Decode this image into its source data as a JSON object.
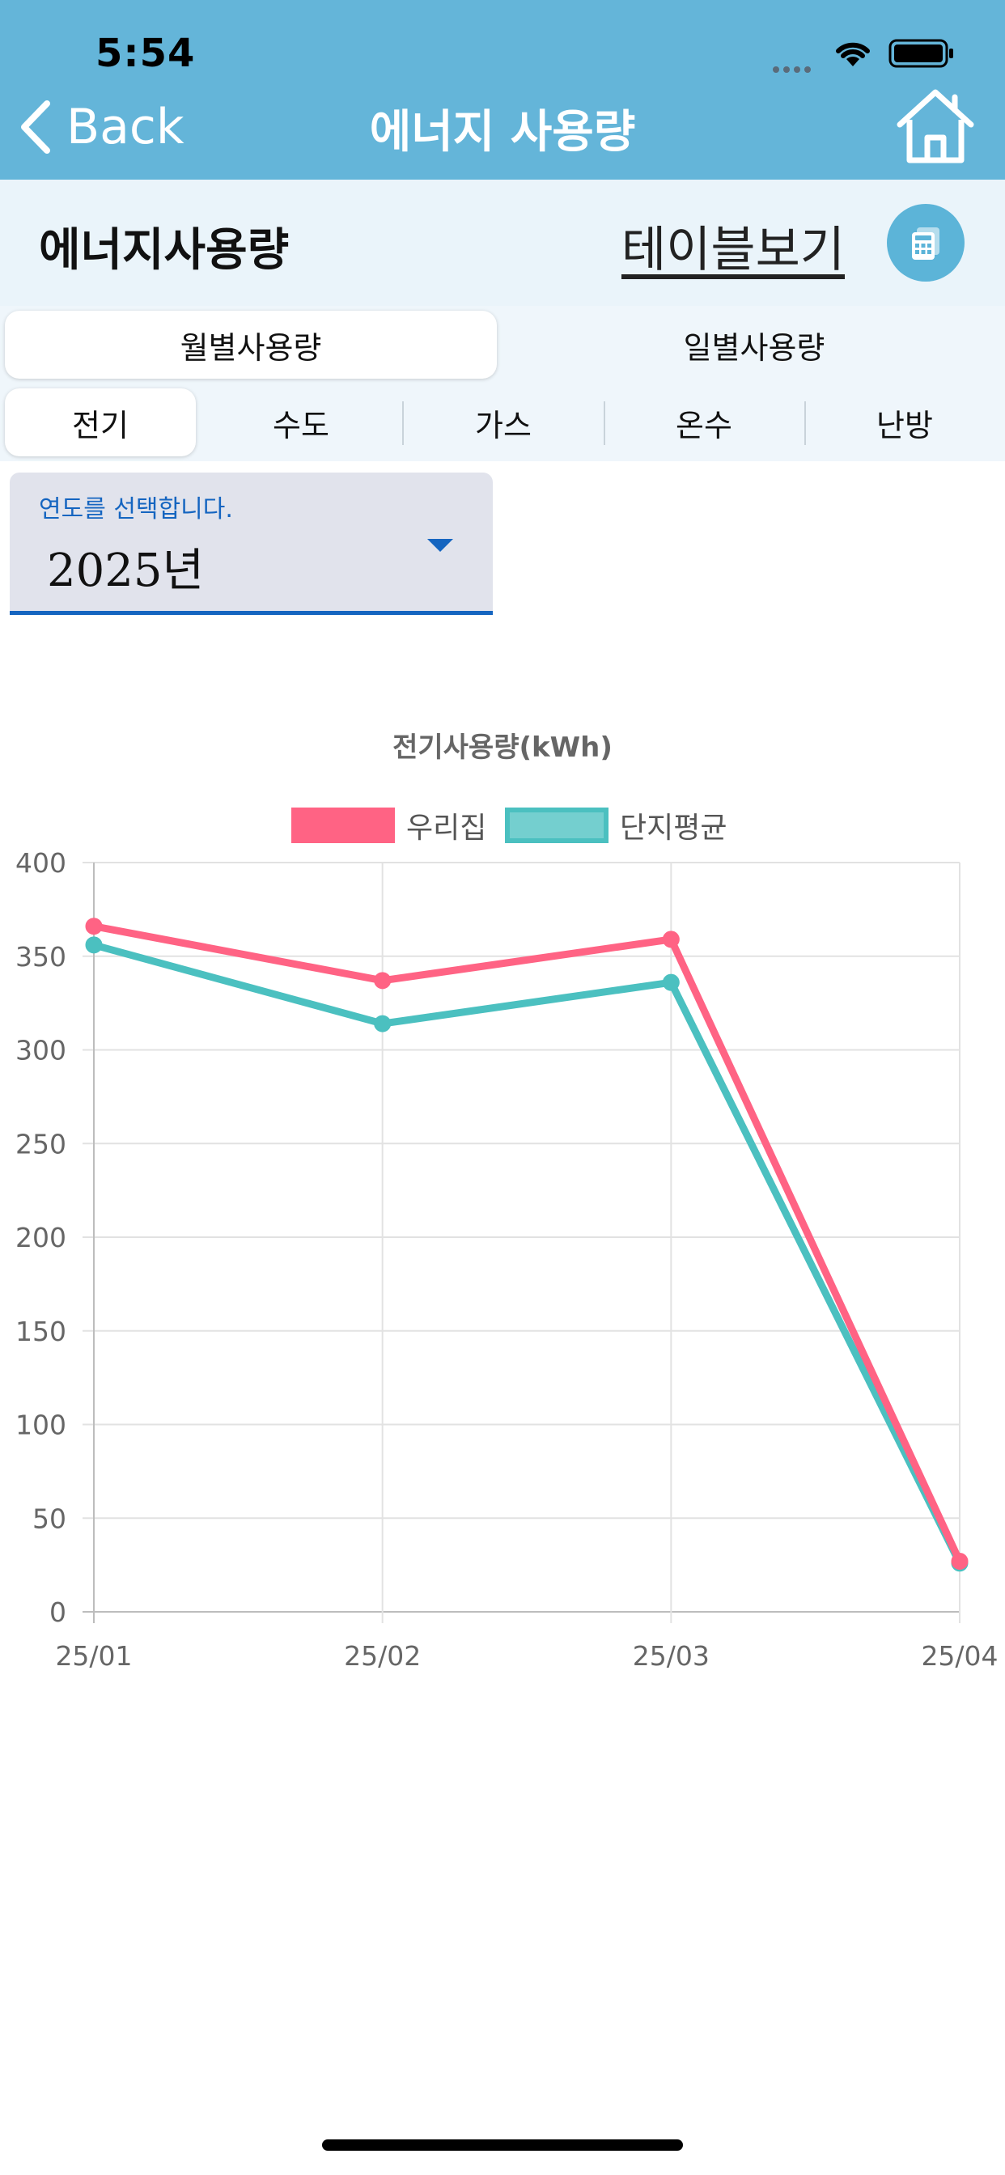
{
  "status_bar": {
    "time": "5:54"
  },
  "nav": {
    "back_label": "Back",
    "title": "에너지 사용량"
  },
  "subheader": {
    "heading": "에너지사용량",
    "table_link": "테이블보기"
  },
  "period_tabs": [
    {
      "label": "월별사용량",
      "active": true
    },
    {
      "label": "일별사용량",
      "active": false
    }
  ],
  "type_tabs": [
    {
      "label": "전기",
      "active": true
    },
    {
      "label": "수도",
      "active": false
    },
    {
      "label": "가스",
      "active": false
    },
    {
      "label": "온수",
      "active": false
    },
    {
      "label": "난방",
      "active": false
    }
  ],
  "year_select": {
    "label": "연도를 선택합니다.",
    "value": "2025년"
  },
  "colors": {
    "header": "#64b5d9",
    "ours": "#ff6384",
    "avg": "#4bc0c0",
    "accent": "#1565c0"
  },
  "chart_data": {
    "type": "line",
    "title": "전기사용량(kWh)",
    "categories": [
      "25/01",
      "25/02",
      "25/03",
      "25/04"
    ],
    "ylim": [
      0,
      400
    ],
    "yticks": [
      0,
      50,
      100,
      150,
      200,
      250,
      300,
      350,
      400
    ],
    "grid": true,
    "legend": "top-center",
    "series": [
      {
        "name": "우리집",
        "color": "#ff6384",
        "values": [
          366,
          337,
          359,
          27
        ]
      },
      {
        "name": "단지평균",
        "color": "#4bc0c0",
        "values": [
          356,
          314,
          336,
          26
        ]
      }
    ]
  }
}
